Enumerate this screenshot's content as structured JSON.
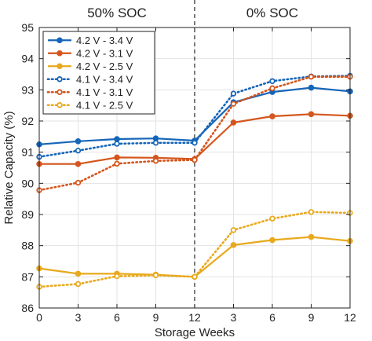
{
  "chart_data": {
    "type": "line",
    "xlabel": "Storage Weeks",
    "ylabel": "Relative Capacity (%)",
    "ylim": [
      86,
      95
    ],
    "yticks": [
      86,
      87,
      88,
      89,
      90,
      91,
      92,
      93,
      94,
      95
    ],
    "x_tick_labels": [
      "0",
      "3",
      "6",
      "9",
      "12",
      "3",
      "6",
      "9",
      "12"
    ],
    "regions": [
      {
        "label": "50% SOC",
        "x_tick_labels": [
          "0",
          "3",
          "6",
          "9",
          "12"
        ]
      },
      {
        "label": "0% SOC",
        "x_tick_labels": [
          "12",
          "3",
          "6",
          "9",
          "12"
        ]
      }
    ],
    "divider_after_tick": "12",
    "grid": true,
    "legend_position": "top-left",
    "series": [
      {
        "name": "4.2 V - 3.4 V",
        "color": "#1565b8",
        "style": "solid",
        "values": [
          91.25,
          91.35,
          91.42,
          91.44,
          91.37,
          92.6,
          92.93,
          93.07,
          92.95
        ]
      },
      {
        "name": "4.2 V - 3.1 V",
        "color": "#d4561e",
        "style": "solid",
        "values": [
          90.62,
          90.62,
          90.83,
          90.82,
          90.78,
          91.95,
          92.15,
          92.22,
          92.17
        ]
      },
      {
        "name": "4.2 V - 2.5 V",
        "color": "#e8a91c",
        "style": "solid",
        "values": [
          87.27,
          87.1,
          87.1,
          87.07,
          87.0,
          88.02,
          88.18,
          88.28,
          88.15
        ]
      },
      {
        "name": "4.1 V - 3.4 V",
        "color": "#1565b8",
        "style": "dotted",
        "values": [
          90.85,
          91.05,
          91.27,
          91.3,
          91.3,
          92.88,
          93.28,
          93.43,
          93.45
        ]
      },
      {
        "name": "4.1 V - 3.1 V",
        "color": "#d4561e",
        "style": "dotted",
        "values": [
          89.78,
          90.02,
          90.63,
          90.72,
          90.75,
          92.55,
          93.05,
          93.42,
          93.42
        ]
      },
      {
        "name": "4.1 V - 2.5 V",
        "color": "#e8a91c",
        "style": "dotted",
        "values": [
          86.68,
          86.77,
          87.02,
          87.05,
          87.0,
          88.5,
          88.87,
          89.08,
          89.05
        ]
      }
    ]
  }
}
